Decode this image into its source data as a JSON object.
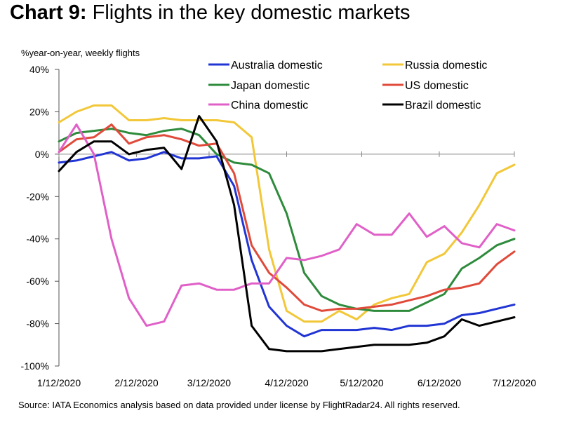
{
  "title_bold": "Chart 9:",
  "title_rest": " Flights in the key domestic markets",
  "source": "Source: IATA Economics analysis based on data provided under license by FlightRadar24. All rights reserved.",
  "chart_data": {
    "type": "line",
    "ylabel": "%year-on-year, weekly flights",
    "ylim": [
      -100,
      40
    ],
    "yticks": [
      40,
      20,
      0,
      -20,
      -40,
      -60,
      -80,
      -100
    ],
    "ytick_labels": [
      "40%",
      "20%",
      "0%",
      "-20%",
      "-40%",
      "-60%",
      "-80%",
      "-100%"
    ],
    "xlim": [
      0,
      182
    ],
    "xticks": [
      0,
      31,
      60,
      91,
      121,
      152,
      182
    ],
    "xtick_labels": [
      "1/12/2020",
      "2/12/2020",
      "3/12/2020",
      "4/12/2020",
      "5/12/2020",
      "6/12/2020",
      "7/12/2020"
    ],
    "legend": "top-right",
    "series": [
      {
        "name": "Australia domestic",
        "color": "#2135d4",
        "points": [
          [
            0,
            -4
          ],
          [
            7,
            -3
          ],
          [
            14,
            -1
          ],
          [
            21,
            1
          ],
          [
            28,
            -3
          ],
          [
            35,
            -2
          ],
          [
            42,
            1
          ],
          [
            49,
            -2
          ],
          [
            56,
            -2
          ],
          [
            63,
            -1
          ],
          [
            70,
            -15
          ],
          [
            77,
            -50
          ],
          [
            84,
            -72
          ],
          [
            91,
            -81
          ],
          [
            98,
            -86
          ],
          [
            105,
            -83
          ],
          [
            112,
            -83
          ],
          [
            119,
            -83
          ],
          [
            126,
            -82
          ],
          [
            133,
            -83
          ],
          [
            140,
            -81
          ],
          [
            147,
            -81
          ],
          [
            154,
            -80
          ],
          [
            161,
            -76
          ],
          [
            168,
            -75
          ],
          [
            175,
            -73
          ],
          [
            182,
            -71
          ]
        ]
      },
      {
        "name": "Japan domestic",
        "color": "#2e8b3c",
        "points": [
          [
            0,
            6
          ],
          [
            7,
            10
          ],
          [
            14,
            11
          ],
          [
            21,
            12
          ],
          [
            28,
            10
          ],
          [
            35,
            9
          ],
          [
            42,
            11
          ],
          [
            49,
            12
          ],
          [
            56,
            9
          ],
          [
            63,
            0
          ],
          [
            70,
            -4
          ],
          [
            77,
            -5
          ],
          [
            84,
            -9
          ],
          [
            91,
            -28
          ],
          [
            98,
            -56
          ],
          [
            105,
            -67
          ],
          [
            112,
            -71
          ],
          [
            119,
            -73
          ],
          [
            126,
            -74
          ],
          [
            133,
            -74
          ],
          [
            140,
            -74
          ],
          [
            147,
            -70
          ],
          [
            154,
            -66
          ],
          [
            161,
            -54
          ],
          [
            168,
            -49
          ],
          [
            175,
            -43
          ],
          [
            182,
            -40
          ]
        ]
      },
      {
        "name": "China domestic",
        "color": "#e060c8",
        "points": [
          [
            0,
            1
          ],
          [
            7,
            14
          ],
          [
            14,
            0
          ],
          [
            21,
            -40
          ],
          [
            28,
            -68
          ],
          [
            35,
            -81
          ],
          [
            42,
            -79
          ],
          [
            49,
            -62
          ],
          [
            56,
            -61
          ],
          [
            63,
            -64
          ],
          [
            70,
            -64
          ],
          [
            77,
            -61
          ],
          [
            84,
            -61
          ],
          [
            91,
            -49
          ],
          [
            98,
            -50
          ],
          [
            105,
            -48
          ],
          [
            112,
            -45
          ],
          [
            119,
            -33
          ],
          [
            126,
            -38
          ],
          [
            133,
            -38
          ],
          [
            140,
            -28
          ],
          [
            147,
            -39
          ],
          [
            154,
            -34
          ],
          [
            161,
            -42
          ],
          [
            168,
            -44
          ],
          [
            175,
            -33
          ],
          [
            182,
            -36
          ]
        ]
      },
      {
        "name": "Russia domestic",
        "color": "#f2c738",
        "points": [
          [
            0,
            15
          ],
          [
            7,
            20
          ],
          [
            14,
            23
          ],
          [
            21,
            23
          ],
          [
            28,
            16
          ],
          [
            35,
            16
          ],
          [
            42,
            17
          ],
          [
            49,
            16
          ],
          [
            56,
            16
          ],
          [
            63,
            16
          ],
          [
            70,
            15
          ],
          [
            77,
            8
          ],
          [
            84,
            -45
          ],
          [
            91,
            -74
          ],
          [
            98,
            -79
          ],
          [
            105,
            -79
          ],
          [
            112,
            -74
          ],
          [
            119,
            -78
          ],
          [
            126,
            -71
          ],
          [
            133,
            -68
          ],
          [
            140,
            -66
          ],
          [
            147,
            -51
          ],
          [
            154,
            -47
          ],
          [
            161,
            -37
          ],
          [
            168,
            -24
          ],
          [
            175,
            -9
          ],
          [
            182,
            -5
          ]
        ]
      },
      {
        "name": "US domestic",
        "color": "#e04a3a",
        "points": [
          [
            0,
            1
          ],
          [
            7,
            7
          ],
          [
            14,
            8
          ],
          [
            21,
            14
          ],
          [
            28,
            5
          ],
          [
            35,
            8
          ],
          [
            42,
            9
          ],
          [
            49,
            7
          ],
          [
            56,
            4
          ],
          [
            63,
            5
          ],
          [
            70,
            -9
          ],
          [
            77,
            -43
          ],
          [
            84,
            -56
          ],
          [
            91,
            -63
          ],
          [
            98,
            -71
          ],
          [
            105,
            -74
          ],
          [
            112,
            -73
          ],
          [
            119,
            -73
          ],
          [
            126,
            -72
          ],
          [
            133,
            -71
          ],
          [
            140,
            -69
          ],
          [
            147,
            -67
          ],
          [
            154,
            -64
          ],
          [
            161,
            -63
          ],
          [
            168,
            -61
          ],
          [
            175,
            -52
          ],
          [
            182,
            -46
          ]
        ]
      },
      {
        "name": "Brazil domestic",
        "color": "#000000",
        "points": [
          [
            0,
            -8
          ],
          [
            7,
            1
          ],
          [
            14,
            6
          ],
          [
            21,
            6
          ],
          [
            28,
            0
          ],
          [
            35,
            2
          ],
          [
            42,
            3
          ],
          [
            49,
            -7
          ],
          [
            56,
            18
          ],
          [
            63,
            6
          ],
          [
            70,
            -24
          ],
          [
            77,
            -81
          ],
          [
            84,
            -92
          ],
          [
            91,
            -93
          ],
          [
            98,
            -93
          ],
          [
            105,
            -93
          ],
          [
            112,
            -92
          ],
          [
            119,
            -91
          ],
          [
            126,
            -90
          ],
          [
            133,
            -90
          ],
          [
            140,
            -90
          ],
          [
            147,
            -89
          ],
          [
            154,
            -86
          ],
          [
            161,
            -78
          ],
          [
            168,
            -81
          ],
          [
            175,
            -79
          ],
          [
            182,
            -77
          ]
        ]
      }
    ]
  }
}
